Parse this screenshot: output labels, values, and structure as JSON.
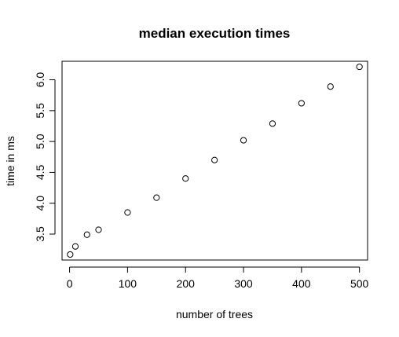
{
  "chart_data": {
    "type": "scatter",
    "title": "median execution times",
    "xlabel": "number of trees",
    "ylabel": "time in ms",
    "x": [
      1,
      10,
      30,
      50,
      100,
      150,
      200,
      250,
      300,
      350,
      400,
      450,
      500
    ],
    "y": [
      3.17,
      3.3,
      3.49,
      3.57,
      3.85,
      4.09,
      4.4,
      4.7,
      5.02,
      5.29,
      5.62,
      5.89,
      6.21
    ],
    "xlim": [
      -13,
      514
    ],
    "ylim": [
      3.08,
      6.3
    ],
    "x_ticks": [
      "0",
      "100",
      "200",
      "300",
      "400",
      "500"
    ],
    "y_ticks": [
      "3.5",
      "4.0",
      "4.5",
      "5.0",
      "5.5",
      "6.0"
    ],
    "marker": "open-circle",
    "grid": false,
    "legend": "none"
  }
}
